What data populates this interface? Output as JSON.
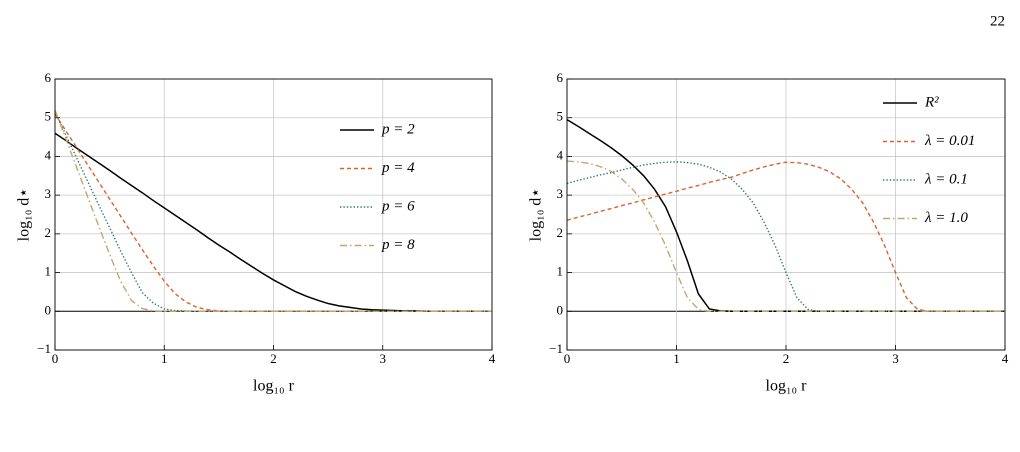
{
  "page_number": "22",
  "chart_data": [
    {
      "type": "line",
      "xlabel": "log₁₀ r",
      "ylabel": "log₁₀ d⋆",
      "xlim": [
        0,
        4
      ],
      "ylim": [
        -1,
        6
      ],
      "xticks": [
        0,
        1,
        2,
        3,
        4
      ],
      "yticks": [
        {
          "value": -1,
          "label": "−1"
        },
        0,
        1,
        2,
        3,
        4,
        5,
        6
      ],
      "grid": true,
      "legend": "upper right",
      "x": [
        0,
        0.1,
        0.2,
        0.3,
        0.4,
        0.5,
        0.6,
        0.7,
        0.8,
        0.9,
        1,
        1.1,
        1.2,
        1.3,
        1.4,
        1.5,
        1.6,
        1.7,
        1.8,
        1.9,
        2,
        2.1,
        2.2,
        2.3,
        2.4,
        2.5,
        2.6,
        2.7,
        2.8,
        2.9,
        3,
        3.1,
        3.2,
        3.3,
        3.4,
        3.5,
        3.6,
        3.7,
        3.8,
        3.9,
        4
      ],
      "series": [
        {
          "name": "p = 2",
          "color": "#000000",
          "dash": "solid",
          "values": [
            4.6,
            4.41,
            4.21,
            4.02,
            3.83,
            3.64,
            3.44,
            3.25,
            3.06,
            2.86,
            2.67,
            2.48,
            2.29,
            2.1,
            1.9,
            1.71,
            1.53,
            1.34,
            1.16,
            0.98,
            0.81,
            0.66,
            0.51,
            0.39,
            0.29,
            0.2,
            0.14,
            0.1,
            0.06,
            0.04,
            0.03,
            0.02,
            0.01,
            0.01,
            0,
            0,
            0,
            0,
            0,
            0,
            0
          ]
        },
        {
          "name": "p = 4",
          "color": "#d8632d",
          "dash": "dashed",
          "values": [
            5.1,
            4.66,
            4.22,
            3.78,
            3.34,
            2.9,
            2.46,
            2.02,
            1.59,
            1.17,
            0.78,
            0.45,
            0.24,
            0.1,
            0.04,
            0.01,
            0,
            0,
            0,
            0,
            0,
            0,
            0,
            0,
            0,
            0,
            0,
            0,
            0,
            0,
            0,
            0,
            0,
            0,
            0,
            0,
            0,
            0,
            0,
            0,
            0
          ]
        },
        {
          "name": "p = 6",
          "color": "#2d7a6a",
          "dash": "dotted",
          "values": [
            5.15,
            4.55,
            3.95,
            3.35,
            2.75,
            2.16,
            1.56,
            1.0,
            0.48,
            0.21,
            0.06,
            0.02,
            0.01,
            0,
            0,
            0,
            0,
            0,
            0,
            0,
            0,
            0,
            0,
            0,
            0,
            0,
            0,
            0,
            0,
            0,
            0,
            0,
            0,
            0,
            0,
            0,
            0,
            0,
            0,
            0,
            0
          ]
        },
        {
          "name": "p = 8",
          "color": "#c8a46b",
          "dash": "dashdot",
          "values": [
            5.2,
            4.45,
            3.7,
            2.95,
            2.2,
            1.47,
            0.78,
            0.28,
            0.07,
            0.01,
            0,
            0,
            0,
            0,
            0,
            0,
            0,
            0,
            0,
            0,
            0,
            0,
            0,
            0,
            0,
            0,
            0,
            0,
            0,
            0,
            0,
            0,
            0,
            0,
            0,
            0,
            0,
            0,
            0,
            0,
            0
          ]
        }
      ]
    },
    {
      "type": "line",
      "xlabel": "log₁₀ r",
      "ylabel": "log₁₀ d⋆",
      "xlim": [
        0,
        4
      ],
      "ylim": [
        -1,
        6
      ],
      "xticks": [
        0,
        1,
        2,
        3,
        4
      ],
      "yticks": [
        {
          "value": -1,
          "label": "−1"
        },
        0,
        1,
        2,
        3,
        4,
        5,
        6
      ],
      "grid": true,
      "legend": "upper right",
      "x": [
        0,
        0.1,
        0.2,
        0.3,
        0.4,
        0.5,
        0.6,
        0.7,
        0.8,
        0.9,
        1,
        1.1,
        1.2,
        1.3,
        1.4,
        1.5,
        1.6,
        1.7,
        1.8,
        1.9,
        2,
        2.1,
        2.2,
        2.3,
        2.4,
        2.5,
        2.6,
        2.7,
        2.8,
        2.9,
        3,
        3.1,
        3.2,
        3.3,
        3.4,
        3.5,
        3.6,
        3.7,
        3.8,
        3.9,
        4
      ],
      "series": [
        {
          "name": "R²",
          "color": "#000000",
          "dash": "solid",
          "values": [
            4.95,
            4.78,
            4.6,
            4.42,
            4.23,
            4.02,
            3.78,
            3.5,
            3.15,
            2.7,
            2.05,
            1.3,
            0.45,
            0.06,
            0.01,
            0,
            0,
            0,
            0,
            0,
            0,
            0,
            0,
            0,
            0,
            0,
            0,
            0,
            0,
            0,
            0,
            0,
            0,
            0,
            0,
            0,
            0,
            0,
            0,
            0,
            0
          ]
        },
        {
          "name": "λ = 0.01",
          "color": "#d8632d",
          "dash": "dashed",
          "values": [
            2.35,
            2.43,
            2.5,
            2.58,
            2.65,
            2.73,
            2.8,
            2.88,
            2.95,
            3.03,
            3.1,
            3.18,
            3.25,
            3.33,
            3.4,
            3.46,
            3.56,
            3.65,
            3.73,
            3.8,
            3.85,
            3.84,
            3.8,
            3.72,
            3.6,
            3.42,
            3.15,
            2.8,
            2.3,
            1.7,
            1.0,
            0.35,
            0.05,
            0,
            0,
            0,
            0,
            0,
            0,
            0,
            0
          ]
        },
        {
          "name": "λ = 0.1",
          "color": "#2d7a6a",
          "dash": "dotted",
          "values": [
            3.3,
            3.38,
            3.45,
            3.52,
            3.58,
            3.65,
            3.72,
            3.78,
            3.82,
            3.85,
            3.86,
            3.84,
            3.8,
            3.72,
            3.6,
            3.42,
            3.15,
            2.8,
            2.3,
            1.7,
            1.0,
            0.35,
            0.05,
            0,
            0,
            0,
            0,
            0,
            0,
            0,
            0,
            0,
            0,
            0,
            0,
            0,
            0,
            0,
            0,
            0,
            0
          ]
        },
        {
          "name": "λ = 1.0",
          "color": "#c8a46b",
          "dash": "dashdot",
          "values": [
            3.88,
            3.86,
            3.82,
            3.74,
            3.62,
            3.42,
            3.15,
            2.8,
            2.3,
            1.7,
            1.0,
            0.35,
            0.05,
            0,
            0,
            0,
            0,
            0,
            0,
            0,
            0,
            0,
            0,
            0,
            0,
            0,
            0,
            0,
            0,
            0,
            0,
            0,
            0,
            0,
            0,
            0,
            0,
            0,
            0,
            0,
            0
          ]
        }
      ]
    }
  ]
}
